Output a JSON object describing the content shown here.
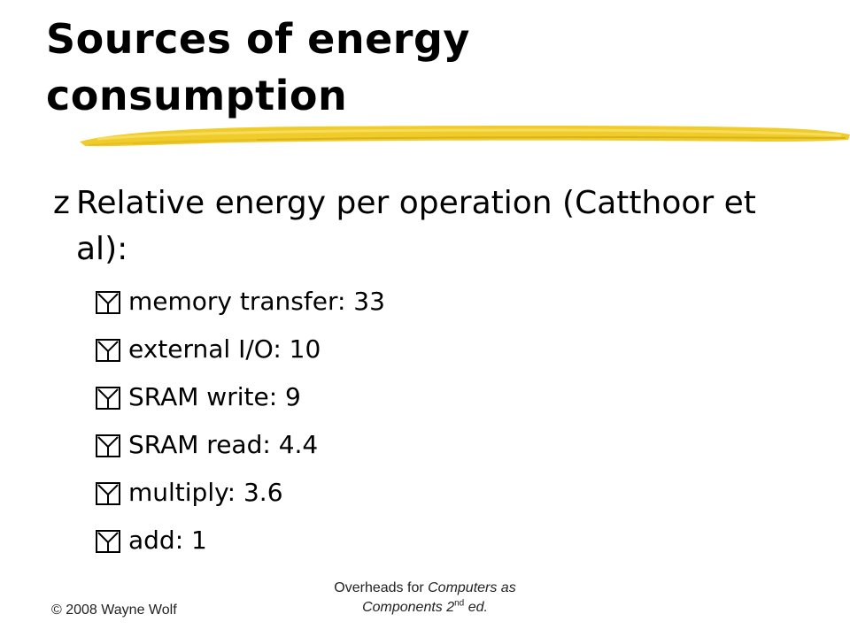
{
  "slide": {
    "title_line1": "Sources of energy",
    "title_line2": "consumption",
    "main_bullet": {
      "marker": "z",
      "text_line1": "Relative energy per operation (Catthoor et",
      "text_line2": "al):"
    },
    "sub_bullets": [
      {
        "marker": "y",
        "text": "memory transfer: 33"
      },
      {
        "marker": "y",
        "text": "external I/O: 10"
      },
      {
        "marker": "y",
        "text": "SRAM write: 9"
      },
      {
        "marker": "y",
        "text": "SRAM read: 4.4"
      },
      {
        "marker": "y",
        "text": "multiply: 3.6"
      },
      {
        "marker": "y",
        "text": "add: 1"
      }
    ]
  },
  "footer": {
    "copyright": "© 2008 Wayne Wolf",
    "center_prefix": "Overheads for ",
    "center_book1": "Computers as",
    "center_book2": "Components 2",
    "center_sup": "nd",
    "center_suffix": " ed."
  },
  "colors": {
    "brush": "#f0cc2a",
    "marker_box": "#000000",
    "text": "#000000"
  }
}
